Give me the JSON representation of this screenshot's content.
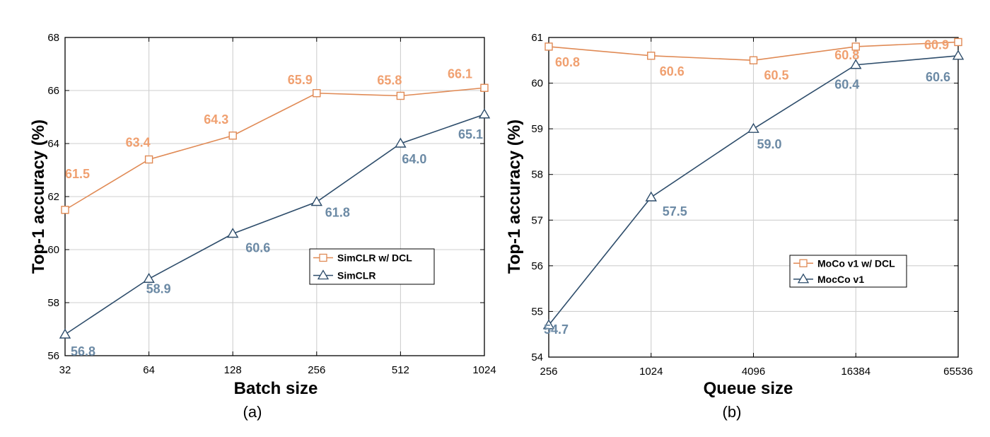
{
  "chart_data": [
    {
      "type": "line",
      "caption": "(a)",
      "xlabel": "Batch size",
      "ylabel": "Top-1 accuracy (%)",
      "x_scale": "log2",
      "categories": [
        "32",
        "64",
        "128",
        "256",
        "512",
        "1024"
      ],
      "ylim": [
        56,
        68
      ],
      "yticks": [
        "56",
        "58",
        "60",
        "62",
        "64",
        "66",
        "68"
      ],
      "grid": true,
      "legend_position": "center-right",
      "series": [
        {
          "name": "SimCLR w/ DCL",
          "marker": "square",
          "color": "#e08a55",
          "label_color": "#f0a070",
          "values": [
            61.5,
            63.4,
            64.3,
            65.9,
            65.8,
            66.1
          ],
          "labels": [
            "61.5",
            "63.4",
            "64.3",
            "65.9",
            "65.8",
            "66.1"
          ]
        },
        {
          "name": "SimCLR",
          "marker": "triangle",
          "color": "#2e4d6b",
          "label_color": "#6c8aa5",
          "values": [
            56.8,
            58.9,
            60.6,
            61.8,
            64.0,
            65.1
          ],
          "labels": [
            "56.8",
            "58.9",
            "60.6",
            "61.8",
            "64.0",
            "65.1"
          ]
        }
      ]
    },
    {
      "type": "line",
      "caption": "(b)",
      "xlabel": "Queue size",
      "ylabel": "Top-1 accuracy (%)",
      "x_scale": "log2",
      "categories": [
        "256",
        "1024",
        "4096",
        "16384",
        "65536"
      ],
      "ylim": [
        54,
        61
      ],
      "yticks": [
        "54",
        "55",
        "56",
        "57",
        "58",
        "59",
        "60",
        "61"
      ],
      "grid": true,
      "legend_position": "center-right",
      "series": [
        {
          "name": "MoCo v1 w/ DCL",
          "marker": "square",
          "color": "#e08a55",
          "label_color": "#f0a070",
          "values": [
            60.8,
            60.6,
            60.5,
            60.8,
            60.9
          ],
          "labels": [
            "60.8",
            "60.6",
            "60.5",
            "60.8",
            "60.9"
          ]
        },
        {
          "name": "MocCo v1",
          "marker": "triangle",
          "color": "#2e4d6b",
          "label_color": "#6c8aa5",
          "values": [
            54.7,
            57.5,
            59.0,
            60.4,
            60.6
          ],
          "labels": [
            "54.7",
            "57.5",
            "59.0",
            "60.4",
            "60.6"
          ]
        }
      ]
    }
  ]
}
